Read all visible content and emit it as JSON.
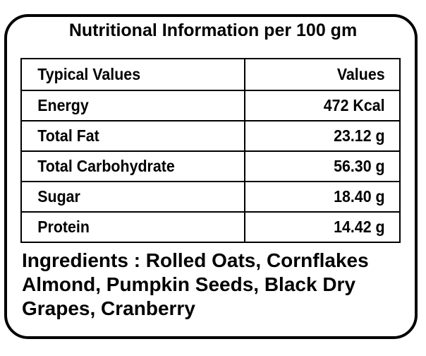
{
  "title": "Nutritional Information per 100 gm",
  "table": {
    "headers": [
      "Typical Values",
      "Values"
    ],
    "rows": [
      [
        "Energy",
        "472 Kcal"
      ],
      [
        "Total Fat",
        "23.12 g"
      ],
      [
        "Total Carbohydrate",
        "56.30 g"
      ],
      [
        "Sugar",
        "18.40 g"
      ],
      [
        "Protein",
        "14.42 g"
      ]
    ]
  },
  "ingredients": {
    "lines": [
      "Ingredients : Rolled Oats, Cornflakes",
      "Almond, Pumpkin Seeds, Black Dry",
      "Grapes, Cranberry"
    ]
  }
}
